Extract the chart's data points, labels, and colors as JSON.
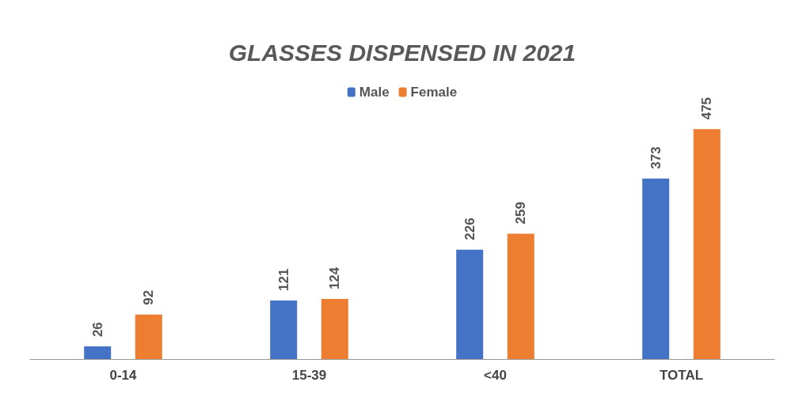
{
  "chart_data": {
    "type": "bar",
    "title": "GLASSES DISPENSED IN 2021",
    "categories": [
      "0-14",
      "15-39",
      "<40",
      "TOTAL"
    ],
    "series": [
      {
        "name": "Male",
        "color": "#4472c4",
        "values": [
          26,
          121,
          226,
          373
        ]
      },
      {
        "name": "Female",
        "color": "#ed7d31",
        "values": [
          92,
          124,
          259,
          475
        ]
      }
    ],
    "data_labels": true,
    "legend": "top"
  }
}
